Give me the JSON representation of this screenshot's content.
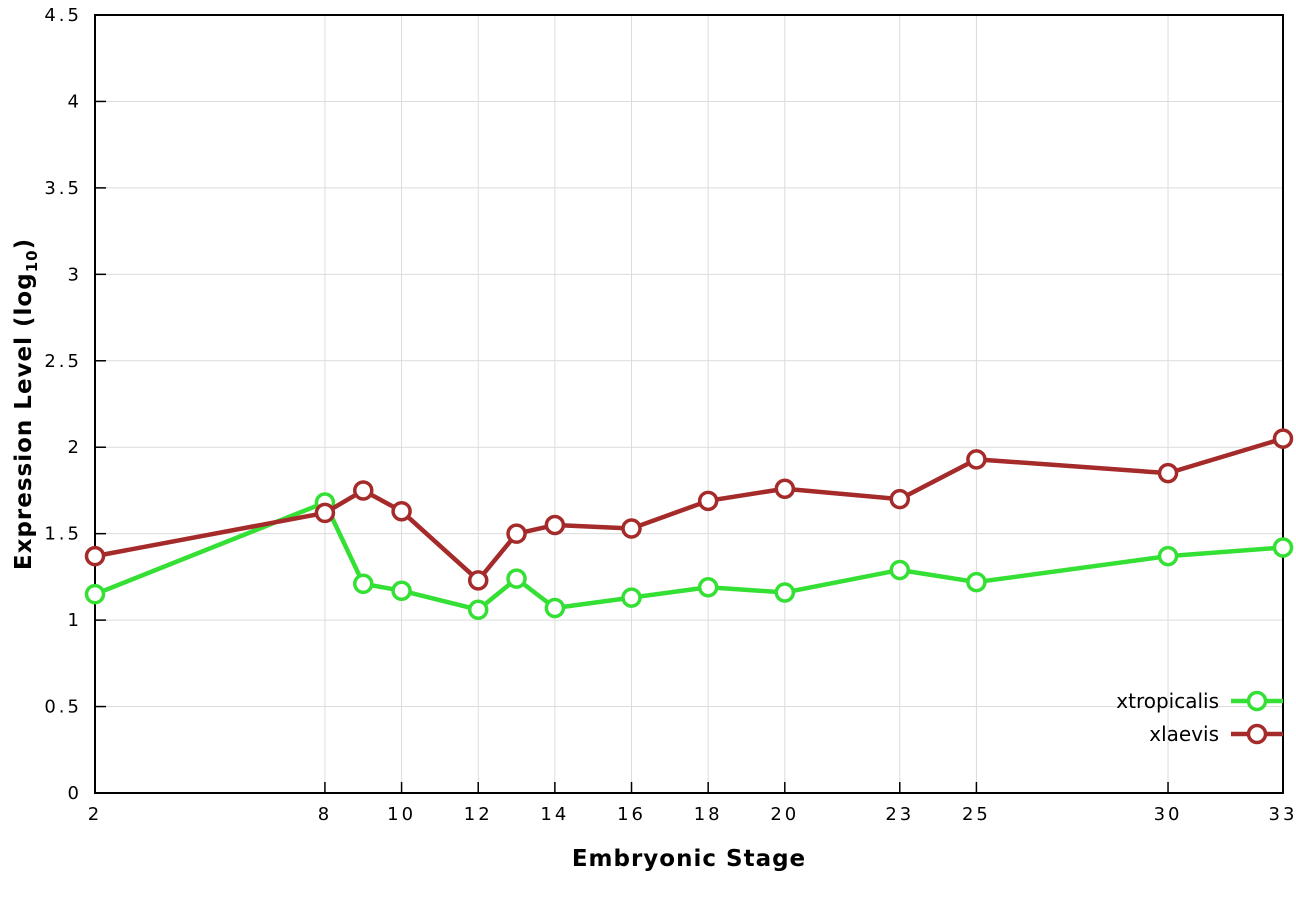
{
  "labels": {
    "ylabel_main": "Expression Level (log",
    "ylabel_sub": "10",
    "ylabel_close": ")"
  },
  "chart_data": {
    "type": "line",
    "title": "",
    "xlabel": "Embryonic Stage",
    "ylabel": "Expression Level (log10)",
    "xlim": [
      2,
      33
    ],
    "ylim": [
      0,
      4.5
    ],
    "ytick_step": 0.5,
    "xticks": [
      2,
      8,
      10,
      12,
      14,
      16,
      18,
      20,
      23,
      25,
      30,
      33
    ],
    "grid": true,
    "legend_position": "bottom-right",
    "background_color": "#ffffff",
    "grid_color": "#dcdcdc",
    "x": [
      2,
      8,
      9,
      10,
      12,
      13,
      14,
      16,
      18,
      20,
      23,
      25,
      30,
      33
    ],
    "series": [
      {
        "name": "xtropicalis",
        "color": "#33e033",
        "values": [
          1.15,
          1.68,
          1.21,
          1.17,
          1.06,
          1.24,
          1.07,
          1.13,
          1.19,
          1.16,
          1.29,
          1.22,
          1.37,
          1.42
        ]
      },
      {
        "name": "xlaevis",
        "color": "#a52a2a",
        "values": [
          1.37,
          1.62,
          1.75,
          1.63,
          1.23,
          1.5,
          1.55,
          1.53,
          1.69,
          1.76,
          1.7,
          1.93,
          1.85,
          2.05
        ]
      }
    ]
  }
}
